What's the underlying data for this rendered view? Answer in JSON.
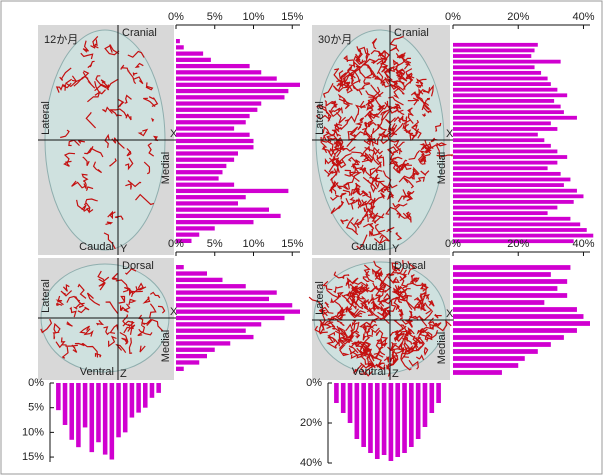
{
  "renderings": [
    {
      "title": "12か月",
      "top": "Cranial",
      "bottom": "Caudal",
      "left": "Lateral",
      "right": "Medial",
      "x": "X",
      "y": "Y"
    },
    {
      "top": "Dorsal",
      "bottom": "Ventral",
      "left": "Lateral",
      "right": "Medial",
      "x": "X",
      "y": "Z"
    },
    {
      "title": "30か月",
      "top": "Cranial",
      "bottom": "Caudal",
      "left": "Lateral",
      "right": "Medial",
      "x": "X",
      "y": "Y"
    },
    {
      "top": "Dorsal",
      "bottom": "Ventral",
      "left": "Lateral",
      "right": "Medial",
      "x": "X",
      "y": "Z"
    }
  ],
  "chart_data": [
    {
      "type": "bar",
      "orientation": "horizontal",
      "color": "#d000d0",
      "xlim": [
        0,
        16
      ],
      "xticks": [
        {
          "value": 0,
          "label": "0%"
        },
        {
          "value": 5,
          "label": "5%"
        },
        {
          "value": 10,
          "label": "10%"
        },
        {
          "value": 15,
          "label": "15%"
        }
      ],
      "values": [
        0.5,
        1,
        3.5,
        4.5,
        9.5,
        11,
        13,
        16,
        14.5,
        14,
        11,
        10.5,
        9.5,
        9,
        7.5,
        9.5,
        10,
        10,
        8,
        7.5,
        6.5,
        6,
        5.5,
        7.5,
        14.5,
        9,
        8,
        12,
        13.5,
        10,
        5,
        3,
        2
      ]
    },
    {
      "type": "bar",
      "orientation": "horizontal",
      "color": "#d000d0",
      "xlim": [
        0,
        16
      ],
      "xticks": [
        {
          "value": 0,
          "label": "0%"
        },
        {
          "value": 5,
          "label": "5%"
        },
        {
          "value": 10,
          "label": "10%"
        },
        {
          "value": 15,
          "label": "15%"
        }
      ],
      "values": [
        1,
        4,
        6,
        9,
        13,
        12,
        15,
        16,
        14,
        11,
        9,
        10,
        7,
        5,
        4,
        3,
        1
      ]
    },
    {
      "type": "bar",
      "orientation": "vertical",
      "color": "#d000d0",
      "ylim": [
        0,
        16
      ],
      "yticks": [
        {
          "value": 0,
          "label": "0%"
        },
        {
          "value": 5,
          "label": "5%"
        },
        {
          "value": 10,
          "label": "10%"
        },
        {
          "value": 15,
          "label": "15%"
        }
      ],
      "values": [
        5.5,
        8.5,
        11.5,
        13,
        9,
        14,
        12,
        14.5,
        15.5,
        11,
        10,
        7,
        6,
        5,
        3,
        2
      ]
    },
    {
      "type": "bar",
      "orientation": "horizontal",
      "color": "#d000d0",
      "xlim": [
        0,
        42
      ],
      "xticks": [
        {
          "value": 0,
          "label": "0%"
        },
        {
          "value": 20,
          "label": "20%"
        },
        {
          "value": 40,
          "label": "40%"
        }
      ],
      "values": [
        26,
        25,
        24,
        33,
        25,
        27,
        29,
        30,
        32,
        35,
        31,
        33,
        34,
        38,
        30,
        32,
        26,
        28,
        30,
        32,
        35,
        32,
        29,
        33,
        36,
        34,
        38,
        40,
        37,
        32,
        29,
        36,
        39,
        41,
        43,
        37
      ]
    },
    {
      "type": "bar",
      "orientation": "horizontal",
      "color": "#d000d0",
      "xlim": [
        0,
        42
      ],
      "xticks": [
        {
          "value": 0,
          "label": "0%"
        },
        {
          "value": 20,
          "label": "20%"
        },
        {
          "value": 40,
          "label": "40%"
        }
      ],
      "values": [
        36,
        30,
        35,
        32,
        35,
        28,
        38,
        40,
        42,
        38,
        34,
        30,
        26,
        22,
        20,
        15
      ]
    },
    {
      "type": "bar",
      "orientation": "vertical",
      "color": "#d000d0",
      "ylim": [
        0,
        40
      ],
      "yticks": [
        {
          "value": 0,
          "label": "0%"
        },
        {
          "value": 20,
          "label": "20%"
        },
        {
          "value": 40,
          "label": "40%"
        }
      ],
      "values": [
        10,
        15,
        20,
        28,
        32,
        35,
        38,
        36,
        39,
        37,
        35,
        32,
        28,
        22,
        15,
        10
      ]
    }
  ]
}
